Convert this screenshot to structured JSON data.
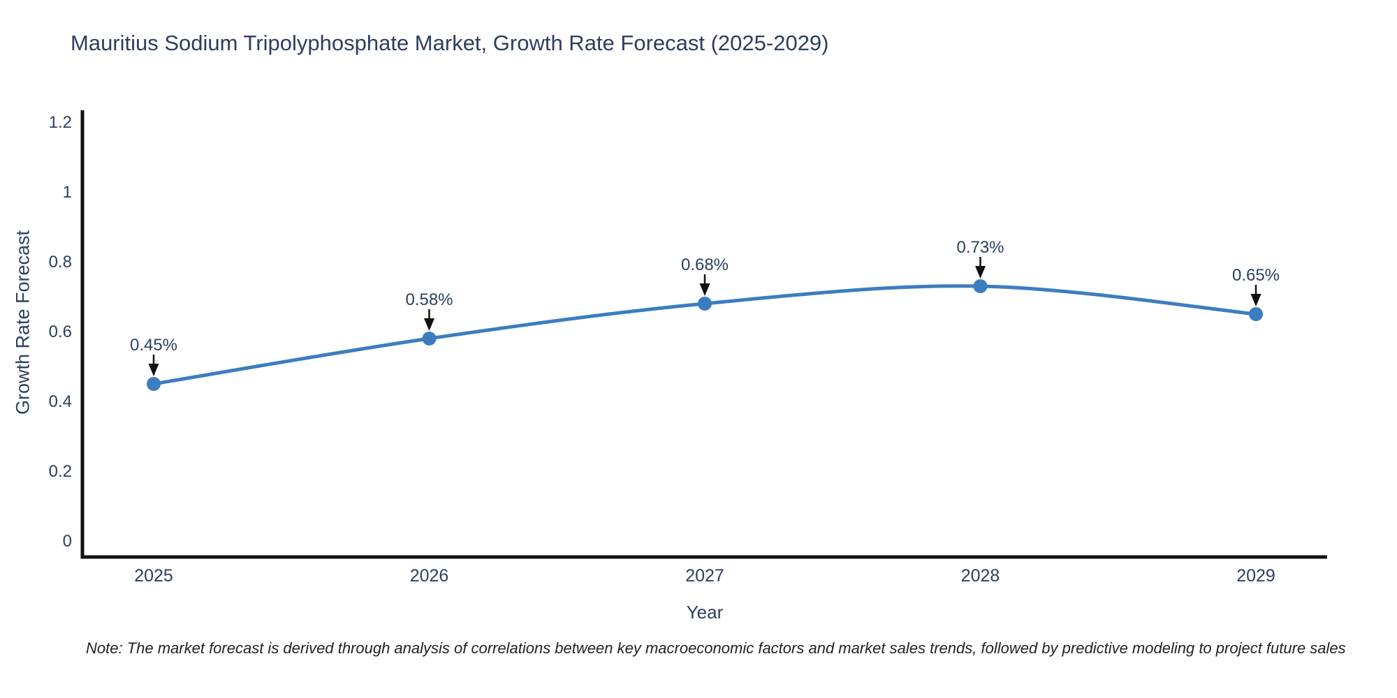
{
  "title": "Mauritius Sodium Tripolyphosphate Market, Growth Rate Forecast (2025-2029)",
  "note": "Note: The market forecast is derived through analysis of correlations between key macroeconomic factors and market sales trends, followed by predictive modeling to project future sales",
  "chart_data": {
    "type": "line",
    "line_shape": "spline",
    "categories": [
      "2025",
      "2026",
      "2027",
      "2028",
      "2029"
    ],
    "series": [
      {
        "name": "Growth Rate Forecast",
        "values": [
          0.45,
          0.58,
          0.68,
          0.73,
          0.65
        ]
      }
    ],
    "point_labels": [
      "0.45%",
      "0.58%",
      "0.68%",
      "0.73%",
      "0.65%"
    ],
    "title": "Mauritius Sodium Tripolyphosphate Market, Growth Rate Forecast (2025-2029)",
    "xlabel": "Year",
    "ylabel": "Growth Rate Forecast",
    "yticks": [
      0,
      0.2,
      0.4,
      0.6,
      0.8,
      1,
      1.2
    ],
    "ylim": [
      -0.05,
      1.23
    ],
    "grid": false,
    "legend_position": "none",
    "colors": {
      "line": "#3c7dbf",
      "marker": "#3c7dbf",
      "arrow": "#111111",
      "tick_text": "#2a3f5f",
      "annotation_text": "#2a3f5f",
      "axis_line": "#111111",
      "title_text": "#2e3c5e",
      "background": "#ffffff"
    }
  }
}
